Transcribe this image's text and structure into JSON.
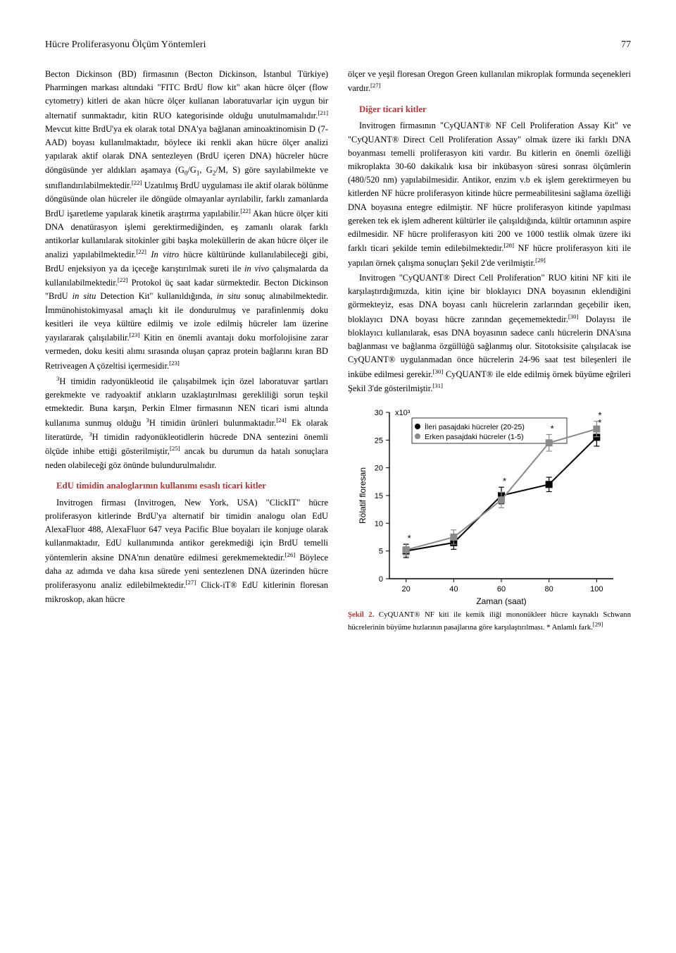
{
  "header": {
    "running_title": "Hücre Proliferasyonu Ölçüm Yöntemleri",
    "page_number": "77"
  },
  "left": {
    "p1": "Becton Dickinson (BD) firmasının (Becton Dickinson, İstanbul Türkiye) Pharmingen markası altındaki \"FITC BrdU flow kit\" akan hücre ölçer (flow cytometry) kitleri de akan hücre ölçer kullanan laboratuvarlar için uygun bir alternatif sunmaktadır, kitin RUO kategorisinde olduğu unutulmamalıdır.[21] Mevcut kitte BrdU'ya ek olarak total DNA'ya bağlanan aminoaktinomisin D (7-AAD) boyası kullanılmaktadır, böylece iki renkli akan hücre ölçer analizi yapılarak aktif olarak DNA sentezleyen (BrdU içeren DNA) hücreler hücre döngüsünde yer aldıkları aşamaya (G0/G1, G2/M, S) göre sayılabilmekte ve sınıflandırılabilmektedir.[22] Uzatılmış BrdU uygulaması ile aktif olarak bölünme döngüsünde olan hücreler ile döngüde olmayanlar ayrılabilir, farklı zamanlarda BrdU işaretleme yapılarak kinetik araştırma yapılabilir.[22] Akan hücre ölçer kiti DNA denatürasyon işlemi gerektirmediğinden, eş zamanlı olarak farklı antikorlar kullanılarak sitokinler gibi başka moleküllerin de akan hücre ölçer ile analizi yapılabilmektedir.[22] In vitro hücre kültüründe kullanılabileceği gibi, BrdU enjeksiyon ya da içeceğe karıştırılmak sureti ile in vivo çalışmalarda da kullanılabilmektedir.[22] Protokol üç saat kadar sürmektedir. Becton Dickinson \"BrdU in situ Detection Kit\" kullanıldığında, in situ sonuç alınabilmektedir. İmmünohistokimyasal amaçlı kit ile dondurulmuş ve parafinlenmiş doku kesitleri ile veya kültüre edilmiş ve izole edilmiş hücreler lam üzerine yayılararak çalışılabilir.[23] Kitin en önemli avantajı doku morfolojisine zarar vermeden, doku kesiti alımı sırasında oluşan çapraz protein bağlarını kıran BD Retriveagen A çözeltisi içermesidir.[23]",
    "p2": "3H timidin radyonükleotid ile çalışabilmek için özel laboratuvar şartları gerekmekte ve radyoaktif atıkların uzaklaştırılması gerekliliği sorun teşkil etmektedir. Buna karşın, Perkin Elmer firmasının NEN ticari ismi altında kullanıma sunmuş olduğu 3H timidin ürünleri bulunmaktadır.[24] Ek olarak literatürde, 3H timidin radyonükleotidlerin hücrede DNA sentezini önemli ölçüde inhibe ettiği gösterilmiştir,[25] ancak bu durumun da hatalı sonuçlara neden olabileceği göz önünde bulundurulmalıdır.",
    "subhead1": "EdU timidin analoglarının kullanımı esaslı ticari kitler",
    "p3": "Invitrogen firması (Invitrogen, New York, USA) \"ClickIT\" hücre proliferasyon kitlerinde BrdU'ya alternatif bir timidin analogu olan EdU AlexaFluor 488, AlexaFluor 647 veya Pacific Blue boyaları ile konjuge olarak kullanmaktadır, EdU kullanımında antikor gerekmediği için BrdU temelli yöntemlerin aksine DNA'nın denatüre edilmesi gerekmemektedir.[26] Böylece daha az adımda ve daha kısa sürede yeni sentezlenen DNA üzerinden hücre proliferasyonu analiz edilebilmektedir.[27] Click-iT® EdU kitlerinin floresan mikroskop, akan hücre"
  },
  "right": {
    "p1": "ölçer ve yeşil floresan Oregon Green kullanılan mikroplak formunda seçenekleri vardır.[27]",
    "subhead1": "Diğer ticari kitler",
    "p2": "Invitrogen firmasının \"CyQUANT® NF Cell Proliferation Assay Kit\" ve \"CyQUANT® Direct Cell Proliferation Assay\" olmak üzere iki farklı DNA boyanması temelli proliferasyon kiti vardır. Bu kitlerin en önemli özelliği mikroplakta 30-60 dakikalık kısa bir inkübasyon süresi sonrası ölçümlerin (480/520 nm) yapılabilmesidir. Antikor, enzim v.b ek işlem gerektirmeyen bu kitlerden NF hücre proliferasyon kitinde hücre permeabilitesini sağlama özelliği DNA boyasına entegre edilmiştir. NF hücre proliferasyon kitinde yapılması gereken tek ek işlem adherent kültürler ile çalışıldığında, kültür ortamının aspire edilmesidir. NF hücre proliferasyon kiti 200 ve 1000 testlik olmak üzere iki farklı ticari şekilde temin edilebilmektedir.[28] NF hücre proliferasyon kiti ile yapılan örnek çalışma sonuçları Şekil 2'de verilmiştir.[29]",
    "p3": "Invitrogen \"CyQUANT® Direct Cell Proliferation\" RUO kitini NF kiti ile karşılaştırdığımızda, kitin içine bir bloklayıcı DNA boyasının eklendiğini görmekteyiz, esas DNA boyası canlı hücrelerin zarlarından geçebilir iken, bloklayıcı DNA boyası hücre zarından geçememektedir.[30] Dolayısı ile bloklayıcı kullanılarak, esas DNA boyasının sadece canlı hücrelerin DNA'sına bağlanması ve bağlanma özgüllüğü sağlanmış olur. Sitotoksisite çalışılacak ise CyQUANT® uygulanmadan önce hücrelerin 24-96 saat test bileşenleri ile inkübe edilmesi gerekir.[30] CyQUANT® ile elde edilmiş örnek büyüme eğrileri Şekil 3'de gösterilmiştir.[31]"
  },
  "chart": {
    "type": "line",
    "ylabel": "Rölatif floresan",
    "xlabel": "Zaman (saat)",
    "y_unit_label": "x10³",
    "legend": {
      "series_black": "İleri pasajdaki hücreler (20-25)",
      "series_gray": "Erken pasajdaki hücreler (1-5)"
    },
    "x_ticks": [
      20,
      40,
      60,
      80,
      100
    ],
    "y_ticks": [
      0,
      5,
      10,
      15,
      20,
      25,
      30
    ],
    "xlim": [
      13,
      107
    ],
    "ylim": [
      0,
      30
    ],
    "series": [
      {
        "color": "#000000",
        "marker_size": 5,
        "line_width": 2,
        "points": [
          [
            20,
            5
          ],
          [
            40,
            6.5
          ],
          [
            60,
            15
          ],
          [
            80,
            17
          ],
          [
            100,
            25.5
          ]
        ],
        "err": [
          1.2,
          1.2,
          1.5,
          1.3,
          1.6
        ],
        "sig": [
          true,
          false,
          true,
          false,
          true
        ]
      },
      {
        "color": "#8a8a8a",
        "marker_size": 5,
        "line_width": 2,
        "points": [
          [
            20,
            5.2
          ],
          [
            40,
            7.5
          ],
          [
            60,
            14.2
          ],
          [
            80,
            24.5
          ],
          [
            100,
            27
          ]
        ],
        "err": [
          1.1,
          1.3,
          1.4,
          1.5,
          1.4
        ],
        "sig": [
          false,
          false,
          false,
          true,
          true
        ]
      }
    ],
    "axis_color": "#000000",
    "tick_fontsize": 11,
    "label_fontsize": 12,
    "background_color": "#ffffff"
  },
  "caption": {
    "label": "Şekil 2.",
    "text": " CyQUANT® NF kiti ile kemik iliği mononükleer hücre kaynaklı Schwann hücrelerinin büyüme hızlarının pasajlarına göre karşılaştırılması. * Anlamlı fark.[29]"
  }
}
